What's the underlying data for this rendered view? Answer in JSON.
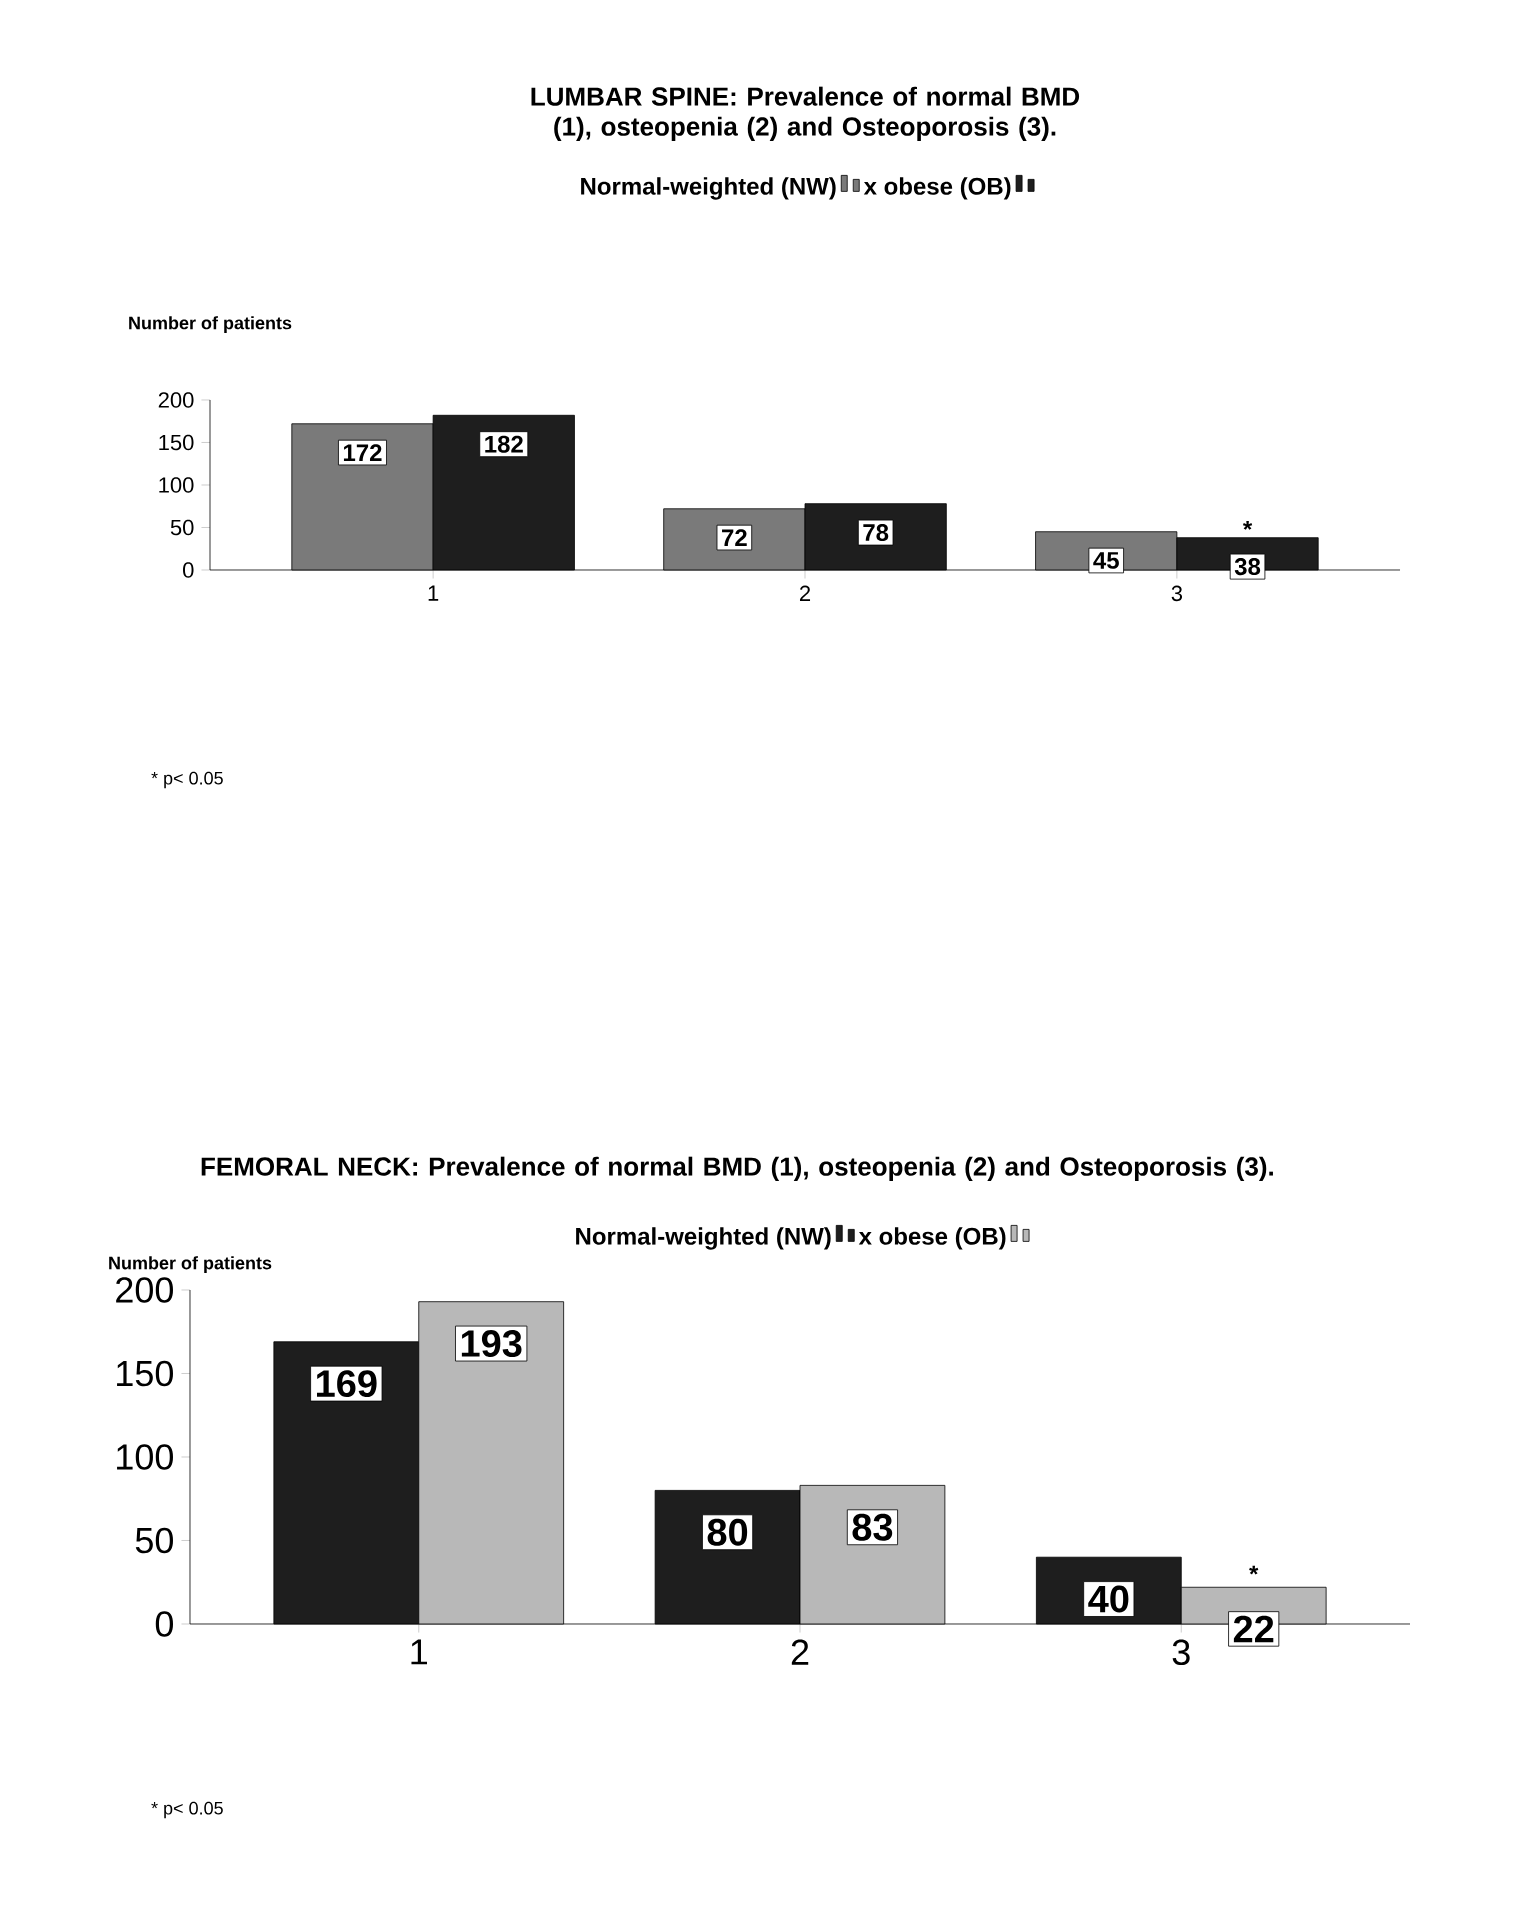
{
  "chart_data": [
    {
      "type": "bar",
      "title": "LUMBAR SPINE: Prevalence of normal BMD (1), osteopenia (2) and Osteoporosis (3).",
      "ylabel": "Number of patients",
      "categories": [
        "1",
        "2",
        "3"
      ],
      "series": [
        {
          "name": "Normal-weighted (NW)",
          "color": "#7a7a7a",
          "values": [
            172,
            72,
            45
          ]
        },
        {
          "name": "x obese (OB)",
          "color": "#1e1e1e",
          "values": [
            182,
            78,
            38
          ]
        }
      ],
      "ylim": [
        0,
        200
      ],
      "yticks": [
        0,
        50,
        100,
        150,
        200
      ],
      "legend": "top",
      "data_labels": true,
      "annotations": [
        {
          "text": "*",
          "x": "3",
          "y": 48
        },
        "* p< 0.05"
      ]
    },
    {
      "type": "bar",
      "title": "FEMORAL NECK: Prevalence of normal BMD (1), osteopenia (2) and Osteoporosis (3).",
      "ylabel": "Number of patients",
      "categories": [
        "1",
        "2",
        "3"
      ],
      "series": [
        {
          "name": "Normal-weighted (NW)",
          "color": "#1e1e1e",
          "values": [
            169,
            80,
            40
          ]
        },
        {
          "name": "x obese (OB)",
          "color": "#b8b8b8",
          "values": [
            193,
            83,
            22
          ]
        }
      ],
      "ylim": [
        0,
        200
      ],
      "yticks": [
        0,
        50,
        100,
        150,
        200
      ],
      "legend": "top",
      "data_labels": true,
      "annotations": [
        {
          "text": "*",
          "x": "3",
          "y": 30
        },
        "* p< 0.05"
      ]
    }
  ]
}
